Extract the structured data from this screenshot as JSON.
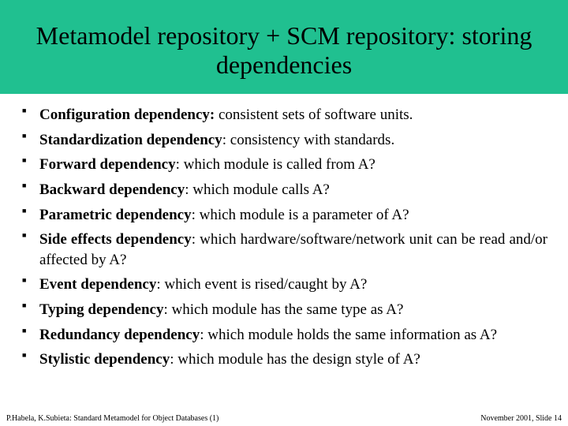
{
  "title": "Metamodel repository + SCM repository: storing dependencies",
  "items": [
    {
      "term": "Configuration dependency:",
      "desc": " consistent sets of software units."
    },
    {
      "term": "Standardization dependency",
      "desc": ": consistency with standards."
    },
    {
      "term": "Forward dependency",
      "desc": ": which module is called from A?"
    },
    {
      "term": "Backward dependency",
      "desc": ": which module calls A?"
    },
    {
      "term": "Parametric dependency",
      "desc": ": which module is a parameter of A?"
    },
    {
      "term": "Side effects dependency",
      "desc": ": which hardware/software/network unit can be read and/or affected by A?"
    },
    {
      "term": "Event dependency",
      "desc": ": which event is rised/caught by A?"
    },
    {
      "term": "Typing dependency",
      "desc": ": which module has the same type as A?"
    },
    {
      "term": "Redundancy dependency",
      "desc": ": which module holds the same information as A?"
    },
    {
      "term": "Stylistic dependency",
      "desc": ": which module has the design style of A?"
    }
  ],
  "footer": {
    "left": "P.Habela, K.Subieta: Standard Metamodel for Object Databases (1)",
    "right": "November 2001, Slide 14"
  },
  "colors": {
    "header_bg": "#20c090",
    "body_bg": "#ffffff",
    "text": "#000000"
  }
}
